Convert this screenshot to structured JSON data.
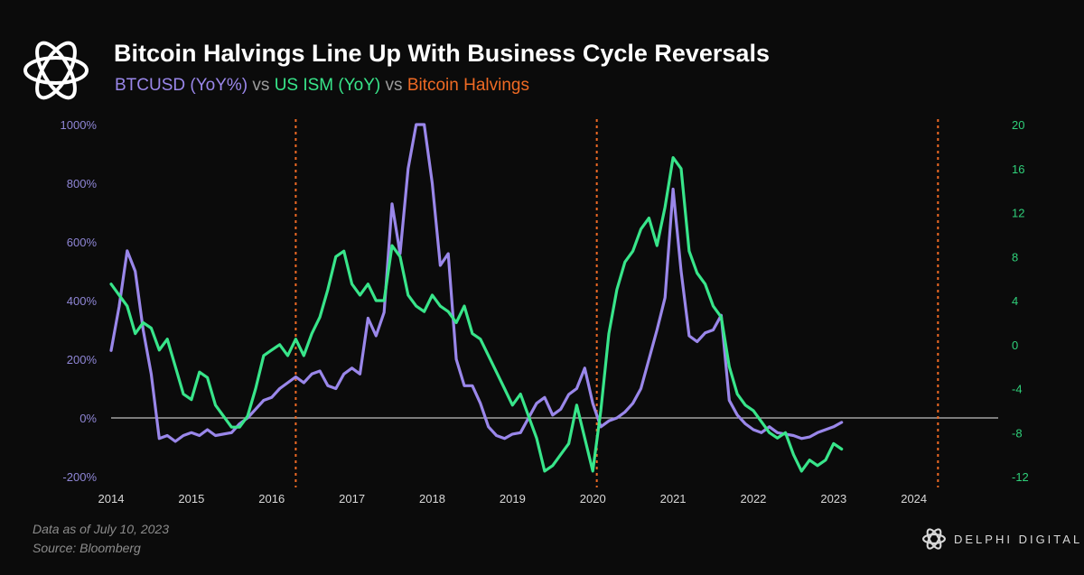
{
  "header": {
    "title": "Bitcoin Halvings Line Up With Business Cycle Reversals",
    "legend_btc": "BTCUSD (YoY%)",
    "legend_ism": "US ISM (YoY)",
    "legend_halvings": "Bitcoin Halvings",
    "vs_1": "vs",
    "vs_2": "vs"
  },
  "footer": {
    "asof": "Data as of July 10, 2023",
    "source": "Source: Bloomberg",
    "brand": "DELPHI DIGITAL"
  },
  "colors": {
    "btc": "#9a87ea",
    "ism": "#38e58a",
    "halving": "#ef6a24",
    "zero_line": "#bfbfbf",
    "left_axis_text": "#8f86d6",
    "right_axis_text": "#2fd07a"
  },
  "chart_data": {
    "type": "line",
    "x_ticks": [
      2014,
      2015,
      2016,
      2017,
      2018,
      2019,
      2020,
      2021,
      2022,
      2023,
      2024
    ],
    "xlim": [
      2014,
      2025.05
    ],
    "y_left": {
      "ylim": [
        -200,
        1000
      ],
      "ticks": [
        -200,
        0,
        200,
        400,
        600,
        800,
        1000
      ],
      "tick_labels": [
        "-200%",
        "0%",
        "200%",
        "400%",
        "600%",
        "800%",
        "1000%"
      ]
    },
    "y_right": {
      "ylim": [
        -12,
        20
      ],
      "ticks": [
        -12,
        -8,
        -4,
        0,
        4,
        8,
        12,
        16,
        20
      ],
      "tick_labels": [
        "-12",
        "-8",
        "-4",
        "0",
        "4",
        "8",
        "12",
        "16",
        "20"
      ]
    },
    "halvings": [
      2016.3,
      2020.05,
      2024.3
    ],
    "zero_line": 0,
    "series": [
      {
        "name": "BTCUSD (YoY%)",
        "axis": "left",
        "points": [
          [
            2014.0,
            230
          ],
          [
            2014.1,
            380
          ],
          [
            2014.2,
            570
          ],
          [
            2014.3,
            500
          ],
          [
            2014.4,
            300
          ],
          [
            2014.5,
            150
          ],
          [
            2014.6,
            -70
          ],
          [
            2014.7,
            -60
          ],
          [
            2014.8,
            -80
          ],
          [
            2014.9,
            -60
          ],
          [
            2015.0,
            -50
          ],
          [
            2015.1,
            -60
          ],
          [
            2015.2,
            -40
          ],
          [
            2015.3,
            -60
          ],
          [
            2015.5,
            -50
          ],
          [
            2015.6,
            -20
          ],
          [
            2015.7,
            0
          ],
          [
            2015.8,
            30
          ],
          [
            2015.9,
            60
          ],
          [
            2016.0,
            70
          ],
          [
            2016.1,
            100
          ],
          [
            2016.2,
            120
          ],
          [
            2016.3,
            140
          ],
          [
            2016.4,
            120
          ],
          [
            2016.5,
            150
          ],
          [
            2016.6,
            160
          ],
          [
            2016.7,
            110
          ],
          [
            2016.8,
            100
          ],
          [
            2016.9,
            150
          ],
          [
            2017.0,
            170
          ],
          [
            2017.1,
            150
          ],
          [
            2017.2,
            340
          ],
          [
            2017.3,
            280
          ],
          [
            2017.4,
            360
          ],
          [
            2017.5,
            730
          ],
          [
            2017.6,
            560
          ],
          [
            2017.7,
            850
          ],
          [
            2017.8,
            1000
          ],
          [
            2017.9,
            1000
          ],
          [
            2018.0,
            800
          ],
          [
            2018.1,
            520
          ],
          [
            2018.2,
            560
          ],
          [
            2018.3,
            200
          ],
          [
            2018.4,
            110
          ],
          [
            2018.5,
            110
          ],
          [
            2018.6,
            50
          ],
          [
            2018.7,
            -30
          ],
          [
            2018.8,
            -60
          ],
          [
            2018.9,
            -70
          ],
          [
            2019.0,
            -55
          ],
          [
            2019.1,
            -50
          ],
          [
            2019.2,
            0
          ],
          [
            2019.3,
            50
          ],
          [
            2019.4,
            70
          ],
          [
            2019.5,
            10
          ],
          [
            2019.6,
            30
          ],
          [
            2019.7,
            80
          ],
          [
            2019.8,
            100
          ],
          [
            2019.9,
            170
          ],
          [
            2020.0,
            50
          ],
          [
            2020.1,
            -30
          ],
          [
            2020.2,
            -10
          ],
          [
            2020.3,
            0
          ],
          [
            2020.4,
            20
          ],
          [
            2020.5,
            50
          ],
          [
            2020.6,
            100
          ],
          [
            2020.7,
            200
          ],
          [
            2020.8,
            300
          ],
          [
            2020.9,
            410
          ],
          [
            2021.0,
            780
          ],
          [
            2021.1,
            500
          ],
          [
            2021.2,
            280
          ],
          [
            2021.3,
            260
          ],
          [
            2021.4,
            290
          ],
          [
            2021.5,
            300
          ],
          [
            2021.6,
            350
          ],
          [
            2021.7,
            60
          ],
          [
            2021.8,
            10
          ],
          [
            2021.9,
            -20
          ],
          [
            2022.0,
            -40
          ],
          [
            2022.1,
            -50
          ],
          [
            2022.2,
            -30
          ],
          [
            2022.3,
            -50
          ],
          [
            2022.4,
            -55
          ],
          [
            2022.5,
            -60
          ],
          [
            2022.6,
            -70
          ],
          [
            2022.7,
            -65
          ],
          [
            2022.8,
            -50
          ],
          [
            2022.9,
            -40
          ],
          [
            2023.0,
            -30
          ],
          [
            2023.1,
            -15
          ]
        ]
      },
      {
        "name": "US ISM (YoY)",
        "axis": "right",
        "points": [
          [
            2014.0,
            5.5
          ],
          [
            2014.1,
            4.5
          ],
          [
            2014.2,
            3.5
          ],
          [
            2014.3,
            1.0
          ],
          [
            2014.4,
            2.0
          ],
          [
            2014.5,
            1.5
          ],
          [
            2014.6,
            -0.5
          ],
          [
            2014.7,
            0.5
          ],
          [
            2014.8,
            -2.0
          ],
          [
            2014.9,
            -4.5
          ],
          [
            2015.0,
            -5.0
          ],
          [
            2015.1,
            -2.5
          ],
          [
            2015.2,
            -3.0
          ],
          [
            2015.3,
            -5.5
          ],
          [
            2015.4,
            -6.5
          ],
          [
            2015.5,
            -7.5
          ],
          [
            2015.6,
            -7.5
          ],
          [
            2015.7,
            -6.5
          ],
          [
            2015.8,
            -4.0
          ],
          [
            2015.9,
            -1.0
          ],
          [
            2016.0,
            -0.5
          ],
          [
            2016.1,
            0.0
          ],
          [
            2016.2,
            -1.0
          ],
          [
            2016.3,
            0.5
          ],
          [
            2016.4,
            -1.0
          ],
          [
            2016.5,
            1.0
          ],
          [
            2016.6,
            2.5
          ],
          [
            2016.7,
            5.0
          ],
          [
            2016.8,
            8.0
          ],
          [
            2016.9,
            8.5
          ],
          [
            2017.0,
            5.5
          ],
          [
            2017.1,
            4.5
          ],
          [
            2017.2,
            5.5
          ],
          [
            2017.3,
            4.0
          ],
          [
            2017.4,
            4.0
          ],
          [
            2017.5,
            9.0
          ],
          [
            2017.6,
            8.0
          ],
          [
            2017.7,
            4.5
          ],
          [
            2017.8,
            3.5
          ],
          [
            2017.9,
            3.0
          ],
          [
            2018.0,
            4.5
          ],
          [
            2018.1,
            3.5
          ],
          [
            2018.2,
            3.0
          ],
          [
            2018.3,
            2.0
          ],
          [
            2018.4,
            3.5
          ],
          [
            2018.5,
            1.0
          ],
          [
            2018.6,
            0.5
          ],
          [
            2018.7,
            -1.0
          ],
          [
            2018.8,
            -2.5
          ],
          [
            2018.9,
            -4.0
          ],
          [
            2019.0,
            -5.5
          ],
          [
            2019.1,
            -4.5
          ],
          [
            2019.2,
            -6.5
          ],
          [
            2019.3,
            -8.5
          ],
          [
            2019.4,
            -11.5
          ],
          [
            2019.5,
            -11.0
          ],
          [
            2019.6,
            -10.0
          ],
          [
            2019.7,
            -9.0
          ],
          [
            2019.8,
            -5.5
          ],
          [
            2019.9,
            -8.5
          ],
          [
            2020.0,
            -11.5
          ],
          [
            2020.1,
            -6.0
          ],
          [
            2020.2,
            1.0
          ],
          [
            2020.3,
            5.0
          ],
          [
            2020.4,
            7.5
          ],
          [
            2020.5,
            8.5
          ],
          [
            2020.6,
            10.5
          ],
          [
            2020.7,
            11.5
          ],
          [
            2020.8,
            9.0
          ],
          [
            2020.9,
            12.5
          ],
          [
            2021.0,
            17.0
          ],
          [
            2021.1,
            16.0
          ],
          [
            2021.2,
            8.5
          ],
          [
            2021.3,
            6.5
          ],
          [
            2021.4,
            5.5
          ],
          [
            2021.5,
            3.5
          ],
          [
            2021.6,
            2.5
          ],
          [
            2021.7,
            -2.0
          ],
          [
            2021.8,
            -4.5
          ],
          [
            2021.9,
            -5.5
          ],
          [
            2022.0,
            -6.0
          ],
          [
            2022.1,
            -7.0
          ],
          [
            2022.2,
            -8.0
          ],
          [
            2022.3,
            -8.5
          ],
          [
            2022.4,
            -8.0
          ],
          [
            2022.5,
            -10.0
          ],
          [
            2022.6,
            -11.5
          ],
          [
            2022.7,
            -10.5
          ],
          [
            2022.8,
            -11.0
          ],
          [
            2022.9,
            -10.5
          ],
          [
            2023.0,
            -9.0
          ],
          [
            2023.1,
            -9.5
          ]
        ]
      }
    ]
  }
}
